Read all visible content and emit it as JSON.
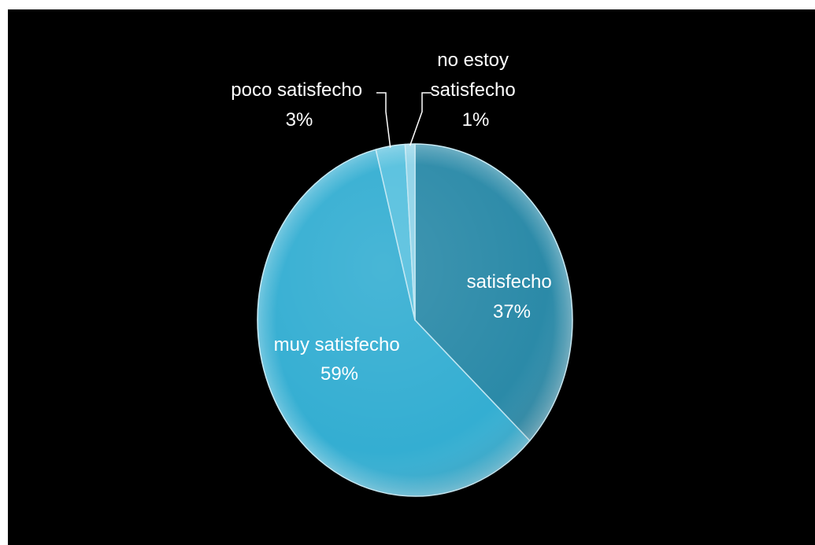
{
  "chart_data": {
    "type": "pie",
    "title": "",
    "slices": [
      {
        "label": "satisfecho",
        "value": 37,
        "value_label": "37%",
        "color": "#2b8aa8"
      },
      {
        "label": "muy satisfecho",
        "value": 59,
        "value_label": "59%",
        "color": "#34aed2"
      },
      {
        "label": "poco satisfecho",
        "value": 3,
        "value_label": "3%",
        "color": "#56c0de"
      },
      {
        "label": "no estoy satisfecho",
        "value": 1,
        "value_label": "1%",
        "color": "#8fd3e8"
      }
    ],
    "legend": "none",
    "start": "top",
    "direction": "clockwise",
    "style": "3d-bevel"
  },
  "colors": {
    "background": "#000000",
    "frame": "#ffffff",
    "label_text": "#ffffff"
  }
}
